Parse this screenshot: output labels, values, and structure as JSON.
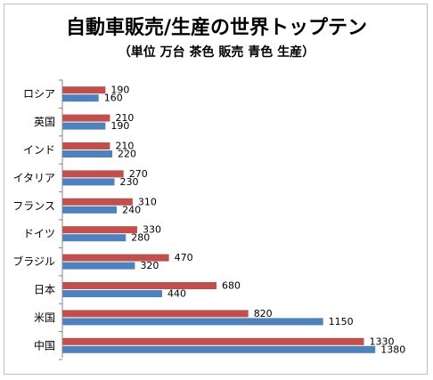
{
  "chart_data": {
    "type": "bar",
    "orientation": "horizontal",
    "title": "自動車販売/生産の世界トップテン",
    "subtitle": "（単位 万台 茶色 販売 青色 生産）",
    "xlabel": "",
    "ylabel": "",
    "categories": [
      "ロシア",
      "英国",
      "インド",
      "イタリア",
      "フランス",
      "ドイツ",
      "ブラジル",
      "日本",
      "米国",
      "中国"
    ],
    "series": [
      {
        "values": [
          190,
          210,
          210,
          270,
          310,
          330,
          470,
          680,
          820,
          1330
        ],
        "color": "#c0504d"
      },
      {
        "values": [
          160,
          190,
          220,
          230,
          240,
          280,
          320,
          440,
          1150,
          1380
        ],
        "color": "#4f81bd"
      }
    ],
    "xlim": [
      0,
      1400
    ],
    "grid": false,
    "legend": "none",
    "data_labels": true
  }
}
